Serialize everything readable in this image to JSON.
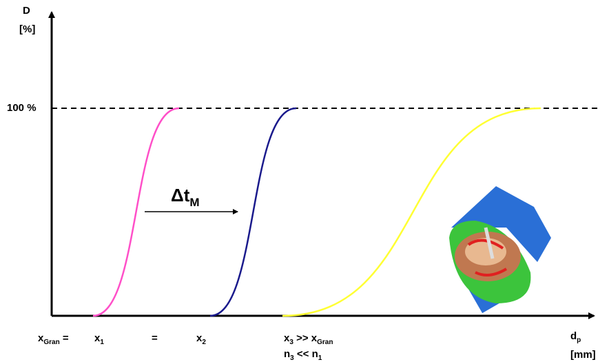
{
  "axes": {
    "y_label": "D",
    "y_unit": "[%]",
    "x_label": [
      "d",
      "p"
    ],
    "x_unit": "[mm]"
  },
  "reference_line": {
    "label": "100 %"
  },
  "annotation": [
    "Δt",
    "M"
  ],
  "x_labels": [
    [
      "x",
      "Gran",
      " ="
    ],
    [
      "x",
      "1"
    ],
    [
      "="
    ],
    [
      "x",
      "2"
    ],
    [
      "x",
      "3",
      " >> x",
      "Gran"
    ],
    [
      "n",
      "3",
      " << n",
      "1"
    ]
  ]
}
